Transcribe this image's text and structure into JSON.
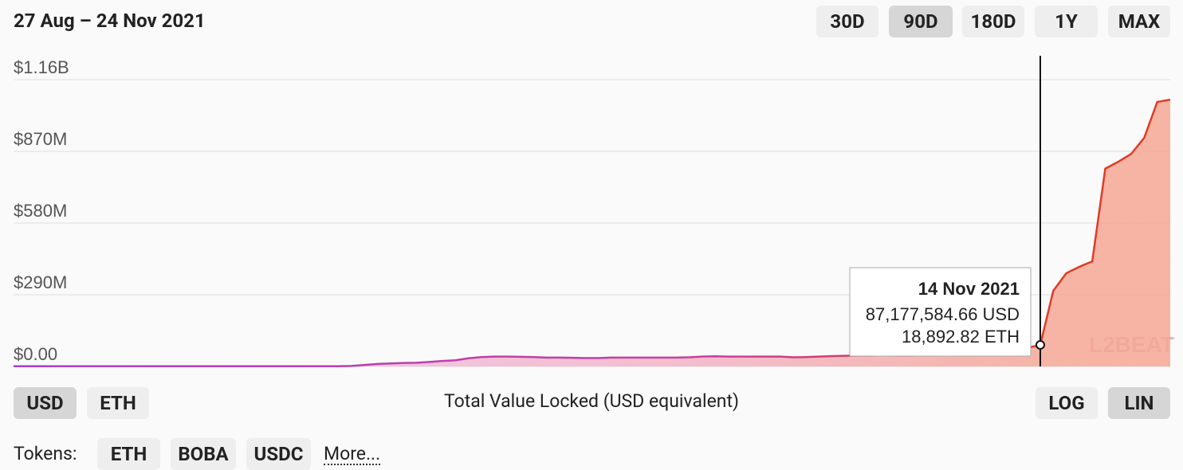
{
  "header": {
    "title": "27 Aug – 24 Nov 2021",
    "ranges": [
      "30D",
      "90D",
      "180D",
      "1Y",
      "MAX"
    ],
    "selected_range": 1
  },
  "chart_data": {
    "type": "area",
    "ylim": [
      0,
      1256666667
    ],
    "yticks": [
      {
        "value": 0,
        "label": "$0.00"
      },
      {
        "value": 290000000,
        "label": "$290M"
      },
      {
        "value": 580000000,
        "label": "$580M"
      },
      {
        "value": 870000000,
        "label": "$870M"
      },
      {
        "value": 1160000000,
        "label": "$1.16B"
      }
    ],
    "grid": true,
    "colors": [
      "#a93ec2",
      "#c83f9e",
      "#e33a24"
    ],
    "fill_colors": [
      "#ecc3ee",
      "#f3b2c4",
      "#f5a795"
    ],
    "values": [
      1000000,
      1000000,
      1000000,
      1000000,
      1000000,
      1000000,
      1000000,
      1000000,
      1000000,
      1000000,
      1000000,
      1000000,
      1000000,
      1000000,
      1000000,
      1000000,
      1000000,
      1000000,
      1000000,
      1000000,
      1000000,
      1000000,
      1000000,
      1000000,
      1000000,
      1000000,
      2000000,
      6000000,
      10000000,
      12000000,
      14000000,
      15000000,
      18000000,
      22000000,
      25000000,
      33000000,
      38000000,
      40000000,
      40000000,
      39000000,
      38000000,
      36000000,
      36000000,
      35000000,
      34000000,
      34000000,
      36000000,
      36000000,
      36000000,
      36000000,
      36000000,
      36000000,
      37000000,
      40000000,
      41000000,
      40000000,
      40000000,
      40000000,
      40000000,
      40000000,
      37000000,
      38000000,
      40000000,
      42000000,
      43000000,
      44000000,
      44000000,
      45000000,
      44000000,
      44000000,
      45000000,
      46000000,
      46000000,
      47000000,
      48000000,
      52000000,
      58000000,
      66000000,
      75000000,
      87177584.66,
      306000000,
      377000000,
      403000000,
      425000000,
      800000000,
      828000000,
      860000000,
      925000000,
      1070000000,
      1079000000
    ],
    "tooltip": {
      "index": 79,
      "date": "14 Nov 2021",
      "usd": "87,177,584.66 USD",
      "eth": "18,892.82 ETH"
    },
    "caption": "Total Value Locked (USD equivalent)",
    "watermark": "L2BEAT"
  },
  "controls": {
    "currencies": [
      "USD",
      "ETH"
    ],
    "selected_currency": 0,
    "scales": [
      "LOG",
      "LIN"
    ],
    "selected_scale": 1,
    "tokens_label": "Tokens:",
    "tokens": [
      "ETH",
      "BOBA",
      "USDC"
    ],
    "more": "More..."
  }
}
